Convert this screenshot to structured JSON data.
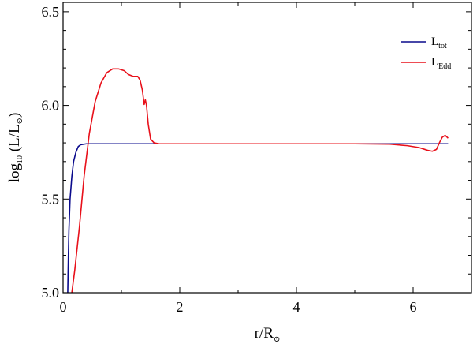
{
  "chart_data": {
    "type": "line",
    "title": "",
    "xlabel": {
      "main": "r/R",
      "sub": "⊙"
    },
    "ylabel": {
      "main": "log",
      "sub": "10",
      "rest": " (L/L",
      "sub2": "⊙",
      "end": ")"
    },
    "xlim": [
      0,
      7
    ],
    "ylim": [
      5.0,
      6.55
    ],
    "x_ticks": [
      0,
      2,
      4,
      6
    ],
    "x_tick_labels": [
      "0",
      "2",
      "4",
      "6"
    ],
    "x_minor_step": 1,
    "y_ticks": [
      5.0,
      5.5,
      6.0,
      6.5
    ],
    "y_tick_labels": [
      "5.0",
      "5.5",
      "6.0",
      "6.5"
    ],
    "y_minor_step": 0.1,
    "grid": false,
    "legend_position": "top-right",
    "series": [
      {
        "name": {
          "main": "L",
          "sub": "tot"
        },
        "color": "#0a0a8c",
        "points": [
          [
            0.08,
            5.0
          ],
          [
            0.09,
            5.18
          ],
          [
            0.1,
            5.33
          ],
          [
            0.12,
            5.5
          ],
          [
            0.15,
            5.62
          ],
          [
            0.18,
            5.7
          ],
          [
            0.22,
            5.75
          ],
          [
            0.26,
            5.78
          ],
          [
            0.3,
            5.79
          ],
          [
            0.4,
            5.795
          ],
          [
            1.0,
            5.795
          ],
          [
            2.0,
            5.795
          ],
          [
            3.0,
            5.795
          ],
          [
            4.0,
            5.795
          ],
          [
            5.0,
            5.795
          ],
          [
            6.0,
            5.795
          ],
          [
            6.6,
            5.795
          ]
        ]
      },
      {
        "name": {
          "main": "L",
          "sub": "Edd"
        },
        "color": "#e8101a",
        "points": [
          [
            0.15,
            5.0
          ],
          [
            0.2,
            5.12
          ],
          [
            0.28,
            5.35
          ],
          [
            0.36,
            5.62
          ],
          [
            0.45,
            5.85
          ],
          [
            0.55,
            6.02
          ],
          [
            0.65,
            6.12
          ],
          [
            0.75,
            6.175
          ],
          [
            0.85,
            6.195
          ],
          [
            0.95,
            6.195
          ],
          [
            1.05,
            6.185
          ],
          [
            1.12,
            6.165
          ],
          [
            1.2,
            6.155
          ],
          [
            1.28,
            6.155
          ],
          [
            1.32,
            6.135
          ],
          [
            1.36,
            6.08
          ],
          [
            1.39,
            6.005
          ],
          [
            1.41,
            6.03
          ],
          [
            1.43,
            6.0
          ],
          [
            1.46,
            5.9
          ],
          [
            1.5,
            5.82
          ],
          [
            1.56,
            5.8
          ],
          [
            1.65,
            5.795
          ],
          [
            2.0,
            5.795
          ],
          [
            3.0,
            5.795
          ],
          [
            4.0,
            5.795
          ],
          [
            5.0,
            5.795
          ],
          [
            5.6,
            5.793
          ],
          [
            5.9,
            5.785
          ],
          [
            6.1,
            5.775
          ],
          [
            6.25,
            5.76
          ],
          [
            6.33,
            5.755
          ],
          [
            6.4,
            5.765
          ],
          [
            6.45,
            5.8
          ],
          [
            6.5,
            5.83
          ],
          [
            6.55,
            5.84
          ],
          [
            6.6,
            5.825
          ]
        ]
      }
    ]
  }
}
